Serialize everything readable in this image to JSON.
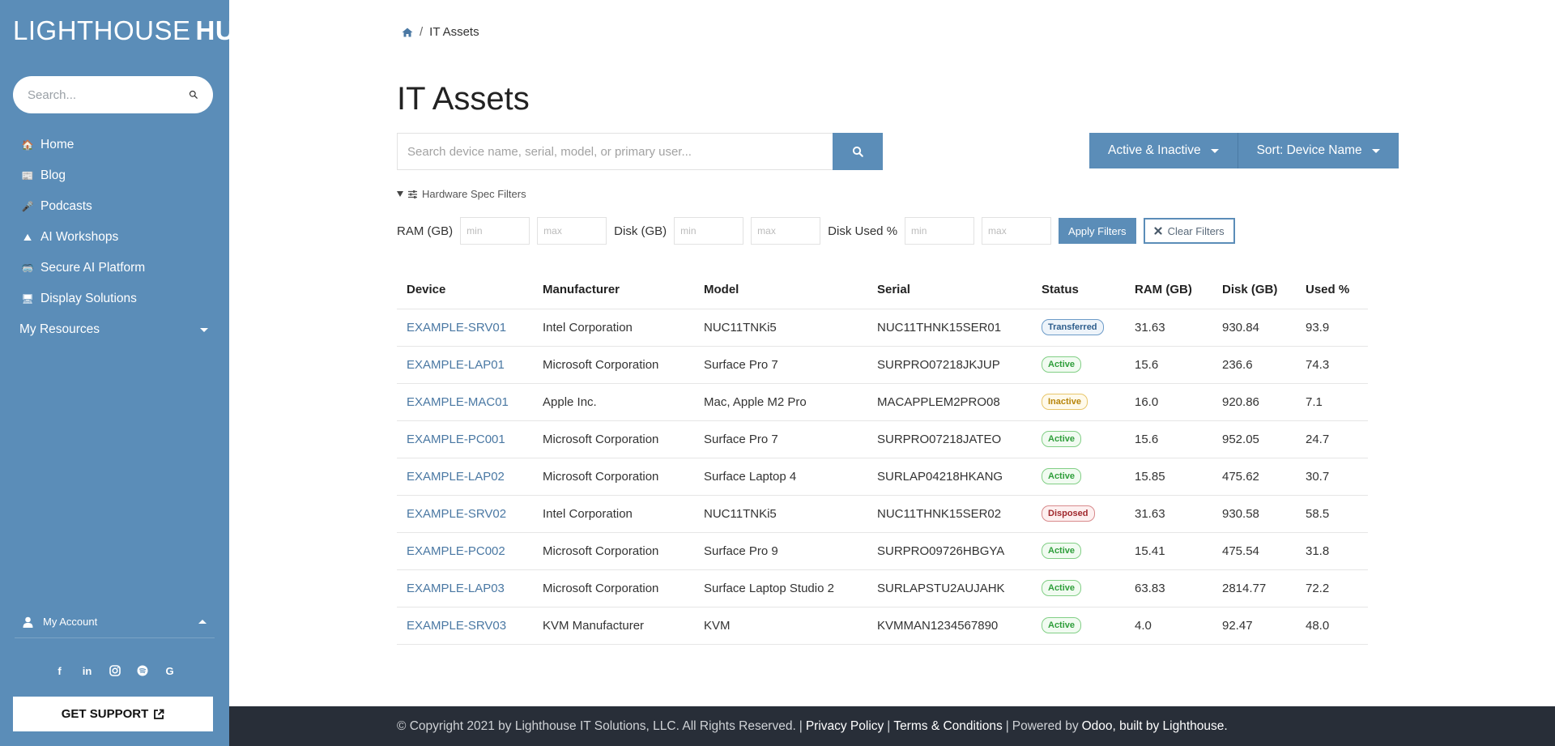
{
  "sidebar": {
    "logo_light": "LIGHTHOUSE",
    "logo_bold": "HUB",
    "search_placeholder": "Search...",
    "nav": [
      {
        "label": "Home",
        "icon": "house-icon",
        "glyph": "🏠"
      },
      {
        "label": "Blog",
        "icon": "newspaper-icon",
        "glyph": "📰"
      },
      {
        "label": "Podcasts",
        "icon": "microphone-icon",
        "glyph": "🎤"
      },
      {
        "label": "AI Workshops",
        "icon": "workshop-icon",
        "glyph": "⛰"
      },
      {
        "label": "Secure AI Platform",
        "icon": "vr-headset-icon",
        "glyph": "🥽"
      },
      {
        "label": "Display Solutions",
        "icon": "monitor-icon",
        "glyph": "🖥"
      }
    ],
    "resources_label": "My Resources",
    "account_label": "My Account",
    "support_label": "GET SUPPORT"
  },
  "breadcrumb": {
    "current": "IT Assets"
  },
  "page_title": "IT Assets",
  "search": {
    "placeholder": "Search device name, serial, model, or primary user..."
  },
  "dropdowns": {
    "status": "Active & Inactive",
    "sort": "Sort: Device Name"
  },
  "spec_toggle_label": "Hardware Spec Filters",
  "filters": {
    "ram_label": "RAM (GB)",
    "disk_label": "Disk (GB)",
    "used_label": "Disk Used %",
    "min_placeholder": "min",
    "max_placeholder": "max",
    "apply_label": "Apply Filters",
    "clear_label": "Clear Filters"
  },
  "table": {
    "columns": [
      "Device",
      "Manufacturer",
      "Model",
      "Serial",
      "Status",
      "RAM (GB)",
      "Disk (GB)",
      "Used %"
    ],
    "rows": [
      [
        "EXAMPLE-SRV01",
        "Intel Corporation",
        "NUC11TNKi5",
        "NUC11THNK15SER01",
        "Transferred",
        "31.63",
        "930.84",
        "93.9"
      ],
      [
        "EXAMPLE-LAP01",
        "Microsoft Corporation",
        "Surface Pro 7",
        "SURPRO07218JKJUP",
        "Active",
        "15.6",
        "236.6",
        "74.3"
      ],
      [
        "EXAMPLE-MAC01",
        "Apple Inc.",
        "Mac, Apple M2 Pro",
        "MACAPPLEM2PRO08",
        "Inactive",
        "16.0",
        "920.86",
        "7.1"
      ],
      [
        "EXAMPLE-PC001",
        "Microsoft Corporation",
        "Surface Pro 7",
        "SURPRO07218JATEO",
        "Active",
        "15.6",
        "952.05",
        "24.7"
      ],
      [
        "EXAMPLE-LAP02",
        "Microsoft Corporation",
        "Surface Laptop 4",
        "SURLAP04218HKANG",
        "Active",
        "15.85",
        "475.62",
        "30.7"
      ],
      [
        "EXAMPLE-SRV02",
        "Intel Corporation",
        "NUC11TNKi5",
        "NUC11THNK15SER02",
        "Disposed",
        "31.63",
        "930.58",
        "58.5"
      ],
      [
        "EXAMPLE-PC002",
        "Microsoft Corporation",
        "Surface Pro 9",
        "SURPRO09726HBGYA",
        "Active",
        "15.41",
        "475.54",
        "31.8"
      ],
      [
        "EXAMPLE-LAP03",
        "Microsoft Corporation",
        "Surface Laptop Studio 2",
        "SURLAPSTU2AUJAHK",
        "Active",
        "63.83",
        "2814.77",
        "72.2"
      ],
      [
        "EXAMPLE-SRV03",
        "KVM Manufacturer",
        "KVM",
        "KVMMAN1234567890",
        "Active",
        "4.0",
        "92.47",
        "48.0"
      ]
    ]
  },
  "footer": {
    "copyright": "© Copyright 2021 by Lighthouse IT Solutions, LLC. All Rights Reserved.",
    "privacy": "Privacy Policy",
    "terms": "Terms & Conditions",
    "powered": "Powered by",
    "odoo": "Odoo, built by Lighthouse."
  },
  "colors": {
    "sidebar": "#5b8db8",
    "footer": "#282e38",
    "link": "#4a78a3"
  }
}
